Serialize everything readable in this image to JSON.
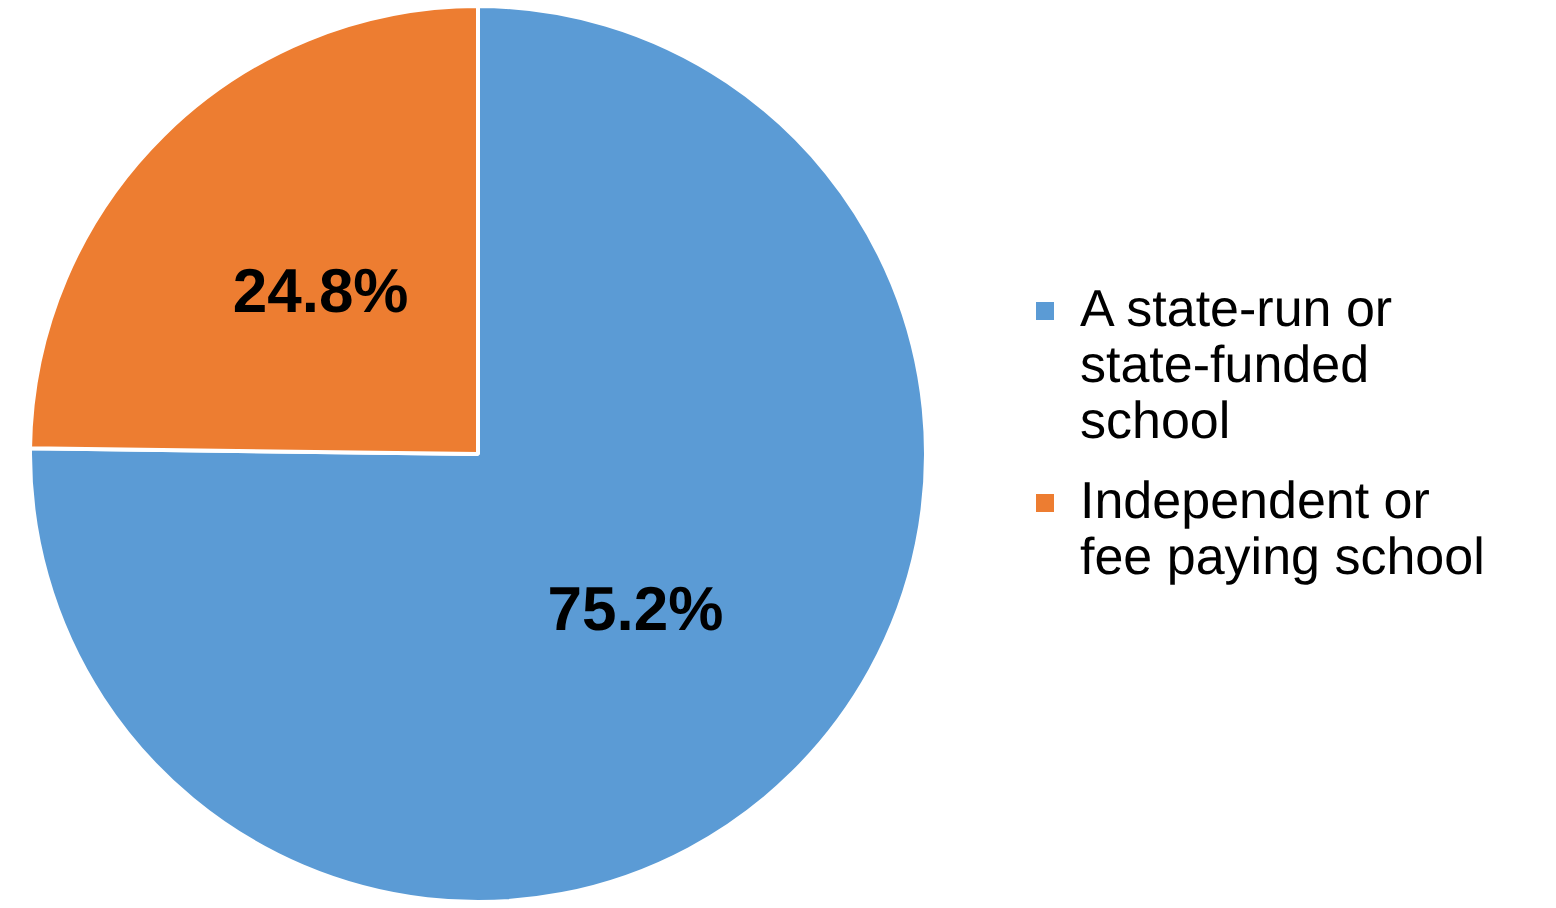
{
  "chart_data": {
    "type": "pie",
    "categories": [
      "A state-run or state-funded school",
      "Independent or fee paying school"
    ],
    "values": [
      75.2,
      24.8
    ],
    "colors": [
      "#5b9bd5",
      "#ed7d31"
    ],
    "value_labels": [
      "75.2%",
      "24.8%"
    ],
    "legend": "right"
  }
}
